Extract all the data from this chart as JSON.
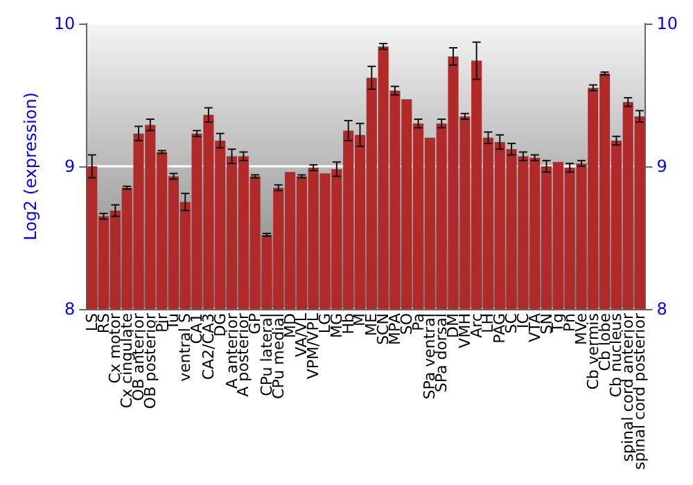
{
  "chart_data": {
    "type": "bar",
    "ylabel": "Log2 (expression)",
    "categories": [
      "LS",
      "RS",
      "Cx motor",
      "Cx cingulate",
      "OB anterior",
      "OB posterior",
      "Pir",
      "Tu",
      "ventral S",
      "CA1",
      "CA2/CA3",
      "DG",
      "A anterior",
      "A posterior",
      "GP",
      "CPu lateral",
      "CPu medial",
      "MD",
      "VA/VL",
      "VPM/VPL",
      "LG",
      "MG",
      "Hb",
      "M",
      "ME",
      "SCN",
      "MPA",
      "SO",
      "Pa",
      "SPa ventral",
      "SPa dorsal",
      "DM",
      "VMH",
      "Arc",
      "LH",
      "PAG",
      "SC",
      "IC",
      "VTA",
      "SN",
      "Tg",
      "Pn",
      "MVe",
      "Cb vermis",
      "Cb lobe",
      "Cb nucleus",
      "spinal cord anterior",
      "spinal cord posterior"
    ],
    "values": [
      9.0,
      8.65,
      8.69,
      8.85,
      9.23,
      9.29,
      9.1,
      8.93,
      8.75,
      9.23,
      9.36,
      9.18,
      9.07,
      9.07,
      8.93,
      8.52,
      8.85,
      8.96,
      8.93,
      8.99,
      8.95,
      8.98,
      9.25,
      9.22,
      9.62,
      9.84,
      9.53,
      9.47,
      9.3,
      9.2,
      9.3,
      9.77,
      9.35,
      9.74,
      9.2,
      9.17,
      9.12,
      9.07,
      9.06,
      9.0,
      9.03,
      8.99,
      9.02,
      9.55,
      9.65,
      9.18,
      9.45,
      9.35
    ],
    "errors": [
      0.08,
      0.02,
      0.04,
      0.01,
      0.05,
      0.04,
      0.01,
      0.02,
      0.06,
      0.02,
      0.05,
      0.05,
      0.05,
      0.03,
      0.01,
      0.01,
      0.02,
      null,
      0.01,
      0.02,
      null,
      0.05,
      0.07,
      0.08,
      0.08,
      0.02,
      0.03,
      null,
      0.03,
      null,
      0.03,
      0.06,
      0.02,
      0.13,
      0.04,
      0.05,
      0.04,
      0.03,
      0.02,
      0.04,
      null,
      0.03,
      0.02,
      0.02,
      0.01,
      0.03,
      0.03,
      0.04
    ],
    "color": "#b02a2a",
    "ylim": [
      8,
      10
    ],
    "yticks": [
      8,
      9,
      10
    ],
    "y2lim": [
      8,
      10
    ],
    "y2ticks": [
      8,
      9,
      10
    ],
    "grid": "y"
  }
}
